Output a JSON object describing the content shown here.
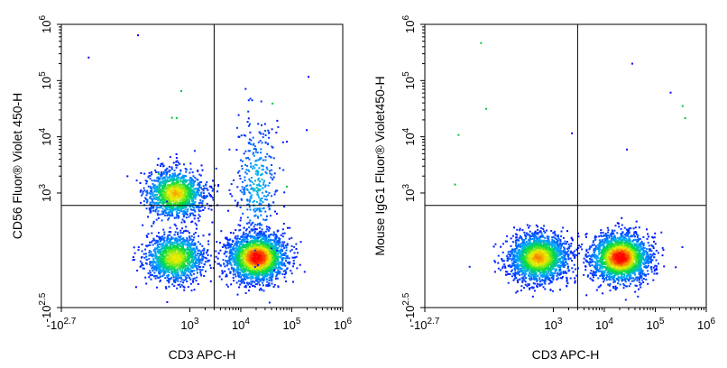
{
  "chart_data": [
    {
      "type": "scatter",
      "subtype": "flow-cytometry-density",
      "xlabel": "CD3 APC-H",
      "ylabel": "CD56 Fluor® Violet 450-H",
      "x_scale": "biexponential",
      "y_scale": "biexponential",
      "xlim": [
        -501,
        1000000
      ],
      "ylim": [
        -316,
        1000000
      ],
      "x_ticks": [
        {
          "base": "-10",
          "exp": "2.7",
          "value": -501
        },
        {
          "base": "10",
          "exp": "3",
          "value": 1000
        },
        {
          "base": "10",
          "exp": "4",
          "value": 10000
        },
        {
          "base": "10",
          "exp": "5",
          "value": 100000
        },
        {
          "base": "10",
          "exp": "6",
          "value": 1000000
        }
      ],
      "y_ticks": [
        {
          "base": "-10",
          "exp": "2.5",
          "value": -316
        },
        {
          "base": "10",
          "exp": "3",
          "value": 1000
        },
        {
          "base": "10",
          "exp": "4",
          "value": 10000
        },
        {
          "base": "10",
          "exp": "5",
          "value": 100000
        },
        {
          "base": "10",
          "exp": "6",
          "value": 1000000
        }
      ],
      "quadrant_gate": {
        "x": 3000,
        "y": 600
      },
      "populations": [
        {
          "x": 500,
          "y": 1000,
          "events": 1300,
          "peak": 0.75
        },
        {
          "x": 500,
          "y": 30,
          "events": 1300,
          "peak": 0.7
        },
        {
          "x": 20000,
          "y": 30,
          "events": 2200,
          "peak": 1.0
        },
        {
          "x": 20000,
          "y": 1500,
          "events": 350,
          "peak": 0.3
        }
      ],
      "grid": false
    },
    {
      "type": "scatter",
      "subtype": "flow-cytometry-density",
      "xlabel": "CD3 APC-H",
      "ylabel": "Mouse IgG1 Fluor® Violet450-H",
      "x_scale": "biexponential",
      "y_scale": "biexponential",
      "xlim": [
        -501,
        1000000
      ],
      "ylim": [
        -316,
        1000000
      ],
      "x_ticks": [
        {
          "base": "-10",
          "exp": "2.7",
          "value": -501
        },
        {
          "base": "10",
          "exp": "3",
          "value": 1000
        },
        {
          "base": "10",
          "exp": "4",
          "value": 10000
        },
        {
          "base": "10",
          "exp": "5",
          "value": 100000
        },
        {
          "base": "10",
          "exp": "6",
          "value": 1000000
        }
      ],
      "y_ticks": [
        {
          "base": "-10",
          "exp": "2.5",
          "value": -316
        },
        {
          "base": "10",
          "exp": "3",
          "value": 1000
        },
        {
          "base": "10",
          "exp": "4",
          "value": 10000
        },
        {
          "base": "10",
          "exp": "5",
          "value": 100000
        },
        {
          "base": "10",
          "exp": "6",
          "value": 1000000
        }
      ],
      "quadrant_gate": {
        "x": 3000,
        "y": 600
      },
      "populations": [
        {
          "x": 500,
          "y": 30,
          "events": 2000,
          "peak": 0.8
        },
        {
          "x": 20000,
          "y": 30,
          "events": 2200,
          "peak": 1.0
        }
      ],
      "grid": false
    }
  ],
  "colors": {
    "density_low": "#0000ff",
    "density_mid": "#00e000",
    "density_high": "#ff0000",
    "axes": "#000000"
  }
}
